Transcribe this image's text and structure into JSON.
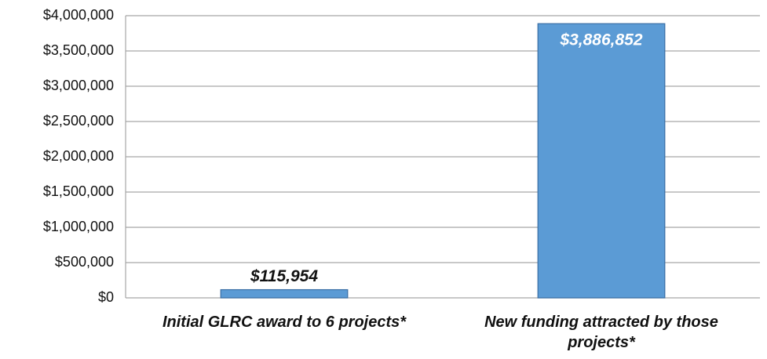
{
  "chart_data": {
    "type": "bar",
    "categories": [
      "Initial GLRC award to 6 projects*",
      "New funding attracted by those projects*"
    ],
    "values": [
      115954,
      3886852
    ],
    "value_labels": [
      "$115,954",
      "$3,886,852"
    ],
    "color": "#5b9bd5",
    "ylim": [
      0,
      4000000
    ],
    "yticks": [
      {
        "value": 0,
        "label": "$0"
      },
      {
        "value": 500000,
        "label": "$500,000"
      },
      {
        "value": 1000000,
        "label": "$1,000,000"
      },
      {
        "value": 1500000,
        "label": "$1,500,000"
      },
      {
        "value": 2000000,
        "label": "$2,000,000"
      },
      {
        "value": 2500000,
        "label": "$2,500,000"
      },
      {
        "value": 3000000,
        "label": "$3,000,000"
      },
      {
        "value": 3500000,
        "label": "$3,500,000"
      },
      {
        "value": 4000000,
        "label": "$4,000,000"
      }
    ],
    "grid": true
  }
}
